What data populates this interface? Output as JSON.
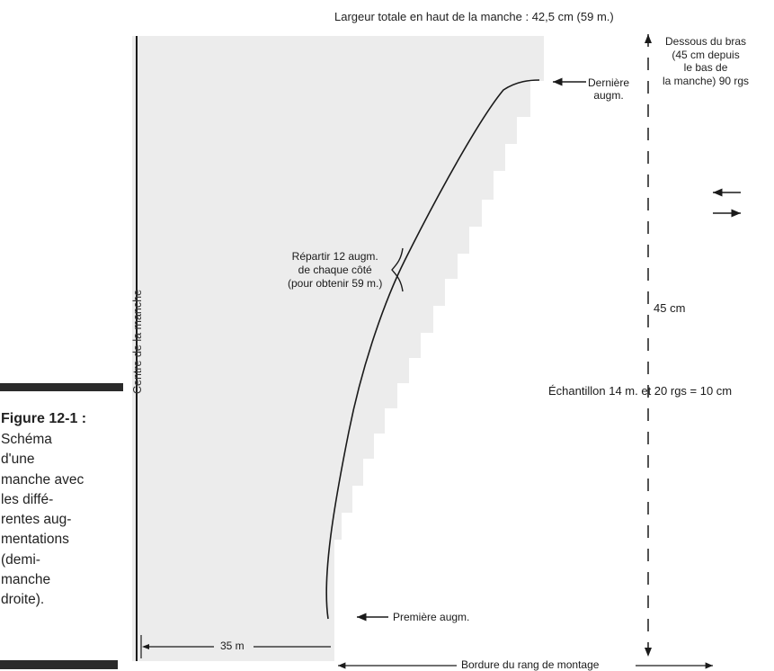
{
  "caption": {
    "figure_number": "Figure 12-1 :",
    "lines": [
      "Schéma",
      "d'une",
      "manche avec",
      "les diffé-",
      "rentes aug-",
      "mentations",
      "(demi-",
      "manche",
      "droite)."
    ]
  },
  "diagram": {
    "top_width": "Largeur totale en haut de la manche : 42,5  cm (59 m.)",
    "below_armhole": [
      "Dessous du bras",
      "(45 cm depuis",
      "le bas de",
      "la manche) 90 rgs"
    ],
    "last_increase": [
      "Dernière",
      "augm."
    ],
    "spread_increases": [
      "Répartir 12 augm.",
      "de chaque côté",
      "(pour obtenir 59 m.)"
    ],
    "length": "45 cm",
    "gauge": "Échantillon  14 m. et 20 rgs = 10 cm",
    "first_increase": "Première augm.",
    "base_width": "35 m",
    "cast_on_edge": "Bordure du rang de montage",
    "sleeve_center": "Centre de la manche"
  },
  "colors": {
    "sleeve_fill": "#ececec",
    "ink": "#1a1a1a",
    "caption_bar": "#2b2b2b"
  }
}
